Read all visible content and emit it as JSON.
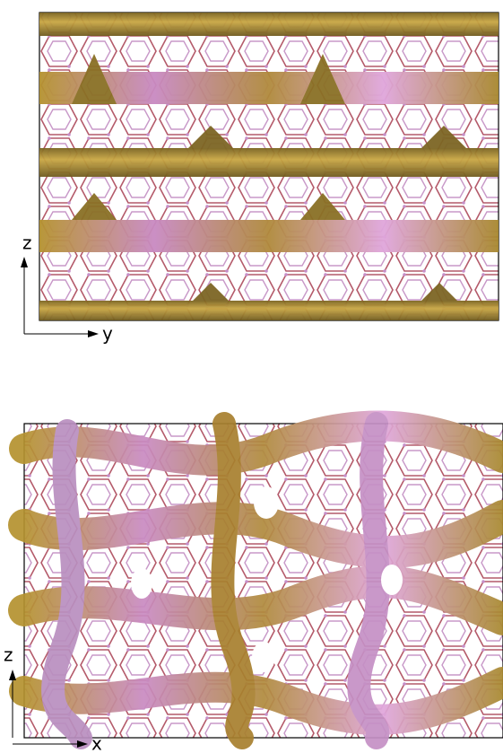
{
  "panels": [
    {
      "axes": {
        "vertical": "z",
        "horizontal": "y"
      }
    },
    {
      "axes": {
        "vertical": "z",
        "horizontal": "x"
      }
    }
  ]
}
